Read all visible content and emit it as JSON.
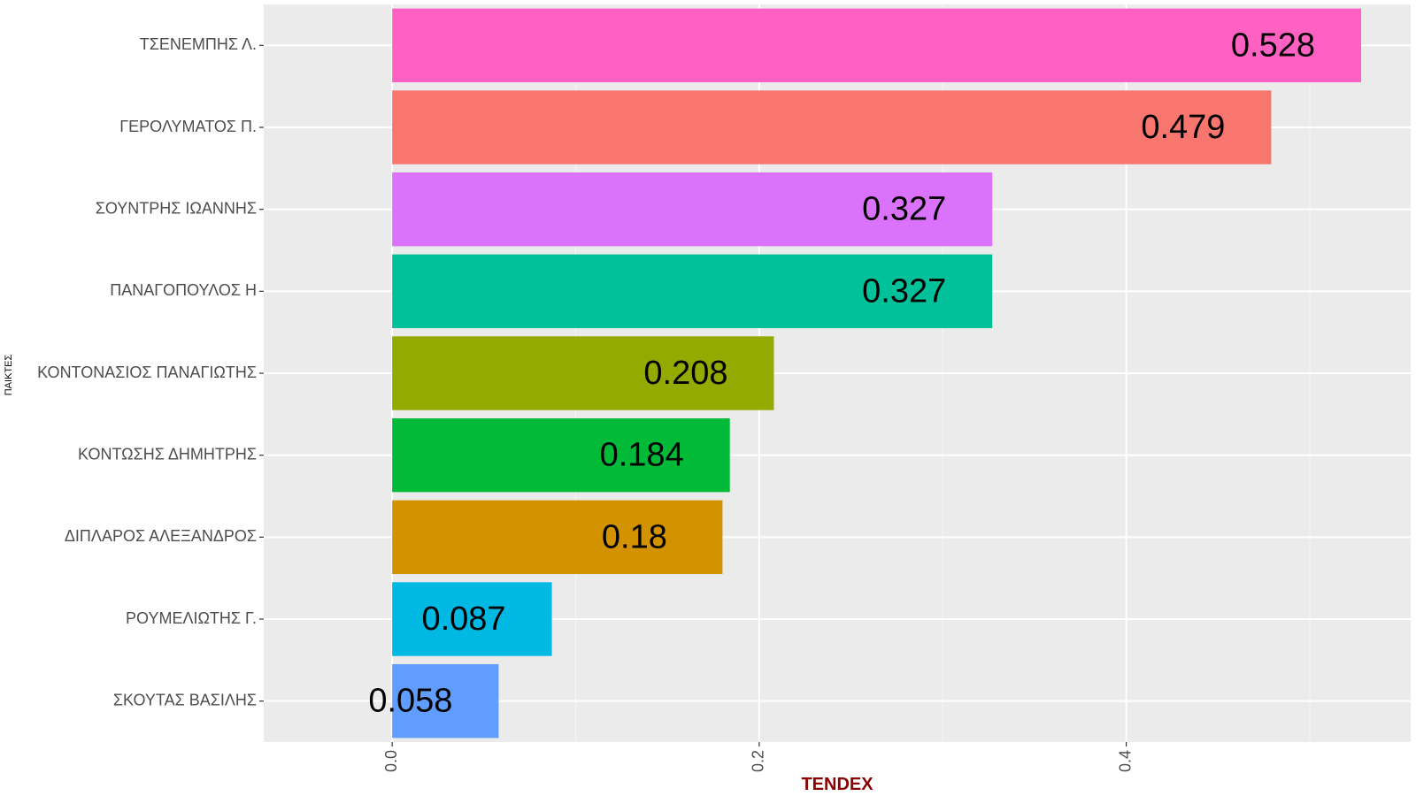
{
  "chart_data": {
    "type": "bar",
    "orientation": "horizontal",
    "xlabel": "TENDEX",
    "ylabel": "ΠΑΙΚΤΕΣ",
    "xlim": [
      -0.07,
      0.555
    ],
    "x_ticks": [
      0.0,
      0.2,
      0.4
    ],
    "x_tick_labels": [
      "0.0",
      "0.2",
      "0.4"
    ],
    "grid": true,
    "legend": "none",
    "label_offset": -0.048,
    "categories": [
      "ΤΣΕΝΕΜΠΗΣ Λ.",
      "ΓΕΡΟΛΥΜΑΤΟΣ Π.",
      "ΣΟΥΝΤΡΗΣ ΙΩΑΝΝΗΣ",
      "ΠΑΝΑΓΟΠΟΥΛΟΣ Η",
      "ΚΟΝΤΟΝΑΣΙΟΣ ΠΑΝΑΓΙΩΤΗΣ",
      "ΚΟΝΤΩΣΗΣ ΔΗΜΗΤΡΗΣ",
      "ΔΙΠΛΑΡΟΣ ΑΛΕΞΑΝΔΡΟΣ",
      "ΡΟΥΜΕΛΙΩΤΗΣ Γ.",
      "ΣΚΟΥΤΑΣ ΒΑΣΙΛΗΣ"
    ],
    "values": [
      0.528,
      0.479,
      0.327,
      0.327,
      0.208,
      0.184,
      0.18,
      0.087,
      0.058
    ],
    "labels": [
      "0.528",
      "0.479",
      "0.327",
      "0.327",
      "0.208",
      "0.184",
      "0.18",
      "0.087",
      "0.058"
    ],
    "colors": [
      "#FF61C3",
      "#F8766D",
      "#DB72FB",
      "#00C19A",
      "#93AA00",
      "#00BA38",
      "#D39200",
      "#00B9E3",
      "#619CFF"
    ]
  }
}
